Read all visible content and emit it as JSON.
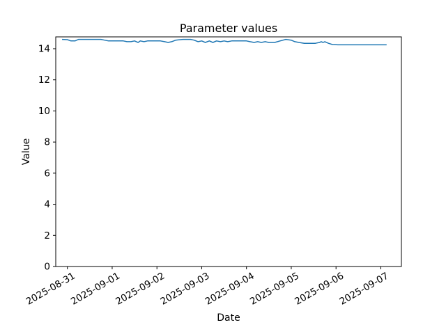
{
  "figure": {
    "background": "#ffffff"
  },
  "chart_data": {
    "type": "line",
    "title": "Parameter values",
    "xlabel": "Date",
    "ylabel": "Value",
    "grid": false,
    "legend": null,
    "line_color": "#1f77b4",
    "axis_color": "#000000",
    "text_color": "#000000",
    "ylim": [
      0,
      14.76
    ],
    "xlim_days": [
      -0.26,
      7.46
    ],
    "y_ticks": [
      {
        "value": 0,
        "label": "0"
      },
      {
        "value": 2,
        "label": "2"
      },
      {
        "value": 4,
        "label": "4"
      },
      {
        "value": 6,
        "label": "6"
      },
      {
        "value": 8,
        "label": "8"
      },
      {
        "value": 10,
        "label": "10"
      },
      {
        "value": 12,
        "label": "12"
      },
      {
        "value": 14,
        "label": "14"
      }
    ],
    "x_ticks": [
      {
        "day": 0,
        "label": "2025-08-31"
      },
      {
        "day": 1,
        "label": "2025-09-01"
      },
      {
        "day": 2,
        "label": "2025-09-02"
      },
      {
        "day": 3,
        "label": "2025-09-03"
      },
      {
        "day": 4,
        "label": "2025-09-04"
      },
      {
        "day": 5,
        "label": "2025-09-05"
      },
      {
        "day": 6,
        "label": "2025-09-06"
      },
      {
        "day": 7,
        "label": "2025-09-07"
      }
    ],
    "x_unit": "days since 2025-08-31",
    "series": [
      {
        "name": "Parameter values",
        "points": [
          [
            -0.12,
            14.6
          ],
          [
            0.0,
            14.58
          ],
          [
            0.08,
            14.5
          ],
          [
            0.17,
            14.5
          ],
          [
            0.25,
            14.6
          ],
          [
            0.42,
            14.6
          ],
          [
            0.58,
            14.6
          ],
          [
            0.75,
            14.6
          ],
          [
            0.83,
            14.55
          ],
          [
            0.92,
            14.5
          ],
          [
            1.08,
            14.5
          ],
          [
            1.25,
            14.5
          ],
          [
            1.33,
            14.45
          ],
          [
            1.42,
            14.45
          ],
          [
            1.5,
            14.5
          ],
          [
            1.54,
            14.45
          ],
          [
            1.58,
            14.4
          ],
          [
            1.63,
            14.5
          ],
          [
            1.71,
            14.45
          ],
          [
            1.79,
            14.5
          ],
          [
            1.92,
            14.5
          ],
          [
            2.08,
            14.5
          ],
          [
            2.17,
            14.45
          ],
          [
            2.25,
            14.4
          ],
          [
            2.33,
            14.45
          ],
          [
            2.42,
            14.55
          ],
          [
            2.58,
            14.6
          ],
          [
            2.75,
            14.6
          ],
          [
            2.83,
            14.55
          ],
          [
            2.92,
            14.45
          ],
          [
            3.0,
            14.5
          ],
          [
            3.08,
            14.4
          ],
          [
            3.17,
            14.5
          ],
          [
            3.25,
            14.4
          ],
          [
            3.33,
            14.5
          ],
          [
            3.42,
            14.45
          ],
          [
            3.5,
            14.5
          ],
          [
            3.58,
            14.45
          ],
          [
            3.67,
            14.5
          ],
          [
            3.83,
            14.5
          ],
          [
            4.0,
            14.5
          ],
          [
            4.08,
            14.45
          ],
          [
            4.17,
            14.4
          ],
          [
            4.25,
            14.45
          ],
          [
            4.33,
            14.4
          ],
          [
            4.42,
            14.45
          ],
          [
            4.5,
            14.4
          ],
          [
            4.63,
            14.4
          ],
          [
            4.75,
            14.5
          ],
          [
            4.88,
            14.6
          ],
          [
            5.0,
            14.55
          ],
          [
            5.08,
            14.45
          ],
          [
            5.17,
            14.4
          ],
          [
            5.29,
            14.35
          ],
          [
            5.42,
            14.35
          ],
          [
            5.54,
            14.35
          ],
          [
            5.63,
            14.4
          ],
          [
            5.67,
            14.45
          ],
          [
            5.71,
            14.4
          ],
          [
            5.75,
            14.45
          ],
          [
            5.83,
            14.35
          ],
          [
            5.92,
            14.27
          ],
          [
            6.04,
            14.25
          ],
          [
            6.17,
            14.25
          ],
          [
            6.33,
            14.25
          ],
          [
            6.5,
            14.25
          ],
          [
            6.67,
            14.25
          ],
          [
            6.83,
            14.25
          ],
          [
            7.0,
            14.25
          ],
          [
            7.13,
            14.25
          ]
        ]
      }
    ]
  }
}
